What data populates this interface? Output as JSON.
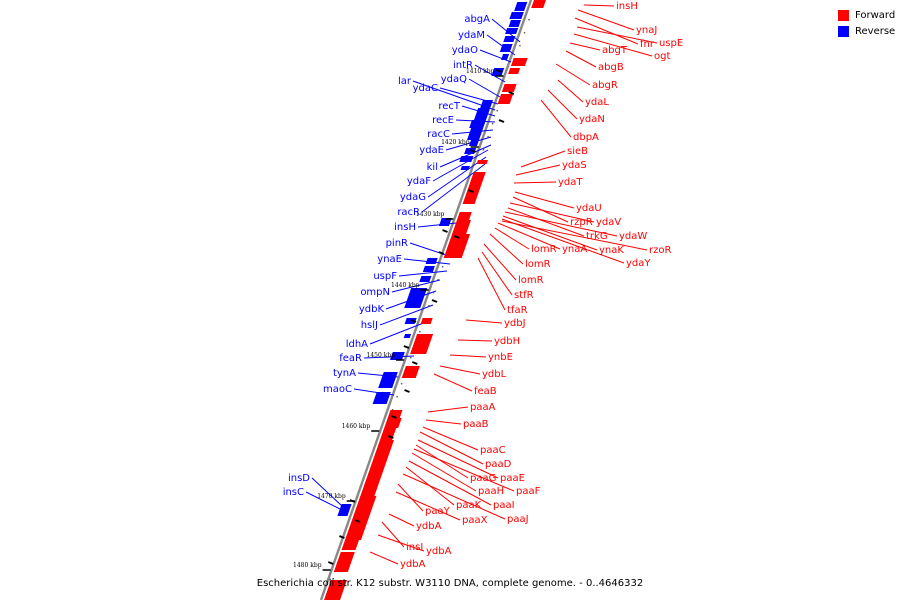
{
  "legend": [
    {
      "label": "Forward",
      "color": "#ff0000"
    },
    {
      "label": "Reverse",
      "color": "#0000ff"
    }
  ],
  "colors": {
    "forward": "#ff0000",
    "reverse": "#0000ff",
    "backbone": "#888888",
    "tick": "#000000",
    "leader": "#0000ff"
  },
  "caption": "Escherichia coli str. K12 substr. W3110 DNA, complete genome. - 0..4646332",
  "ticks": [
    "1410 kbp",
    "1420 kbp",
    "1430 kbp",
    "1440 kbp",
    "1450 kbp",
    "1460 kbp",
    "1470 kbp",
    "1480 kbp"
  ],
  "reverse_genes": [
    "abgA",
    "ydaM",
    "ydaO",
    "intR",
    "ydaQ",
    "ydaC",
    "lar",
    "recT",
    "recE",
    "racC",
    "ydaE",
    "kil",
    "ydaF",
    "ydaG",
    "racR",
    "insH",
    "pinR",
    "ynaE",
    "uspF",
    "ompN",
    "ydbK",
    "hslJ",
    "ldhA",
    "feaR",
    "tynA",
    "maoC",
    "insD",
    "insC"
  ],
  "forward_genes": [
    "insH",
    "ynaJ",
    "fnr",
    "uspE",
    "ogt",
    "abgT",
    "abgB",
    "abgR",
    "ydaL",
    "ydaN",
    "dbpA",
    "sieB",
    "ydaS",
    "ydaT",
    "ydaU",
    "rzpR",
    "ydaV",
    "trkG",
    "ydaW",
    "ynaK",
    "rzoR",
    "lomR",
    "ynaA",
    "ydaY",
    "lomR",
    "lomR",
    "stfR",
    "tfaR",
    "ydbJ",
    "ydbH",
    "ynbE",
    "ydbL",
    "feaB",
    "paaA",
    "paaB",
    "paaC",
    "paaD",
    "paaE",
    "paaG",
    "paaF",
    "paaH",
    "paaI",
    "paaK",
    "paaJ",
    "paaY",
    "paaX",
    "ydbA",
    "insI",
    "ydbA",
    "ydbA"
  ]
}
